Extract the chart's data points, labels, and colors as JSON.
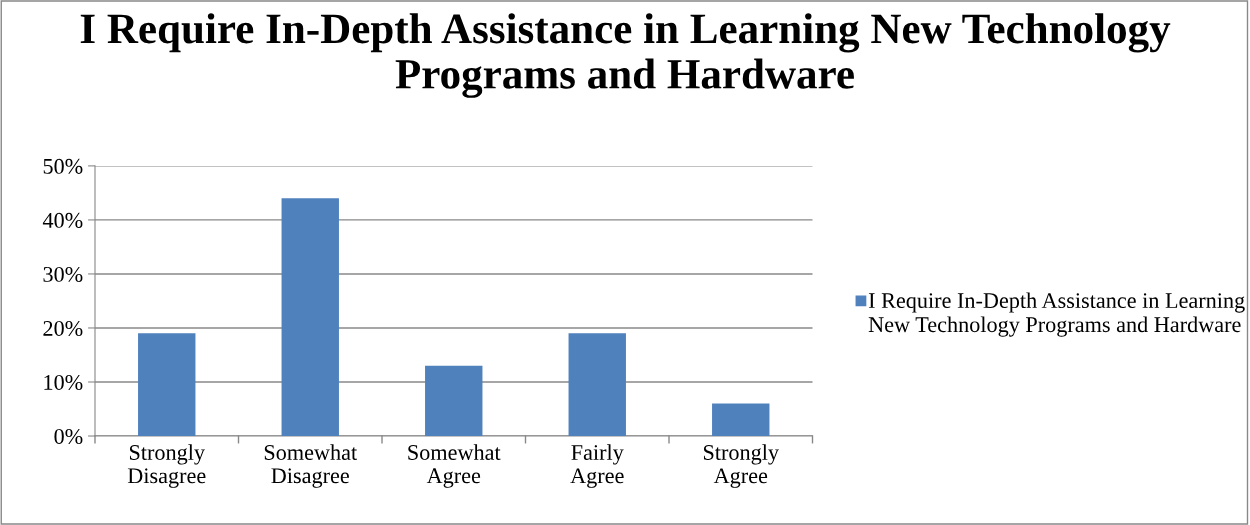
{
  "chart_data": {
    "type": "bar",
    "title": "I Require In-Depth Assistance in Learning New Technology Programs and Hardware",
    "categories": [
      "Strongly Disagree",
      "Somewhat Disagree",
      "Somewhat Agree",
      "Fairly Agree",
      "Strongly Agree"
    ],
    "series": [
      {
        "name": "I Require In-Depth Assistance in Learning New Technology Programs and Hardware",
        "color": "#4f81bd",
        "values": [
          19,
          44,
          13,
          19,
          6
        ]
      }
    ],
    "ylim": [
      0,
      50
    ],
    "yticks": [
      {
        "value": 0,
        "label": "0%"
      },
      {
        "value": 10,
        "label": "10%"
      },
      {
        "value": 20,
        "label": "20%"
      },
      {
        "value": 30,
        "label": "30%"
      },
      {
        "value": 40,
        "label": "40%"
      },
      {
        "value": 50,
        "label": "50%"
      }
    ],
    "grid": "y",
    "legend": "right"
  }
}
